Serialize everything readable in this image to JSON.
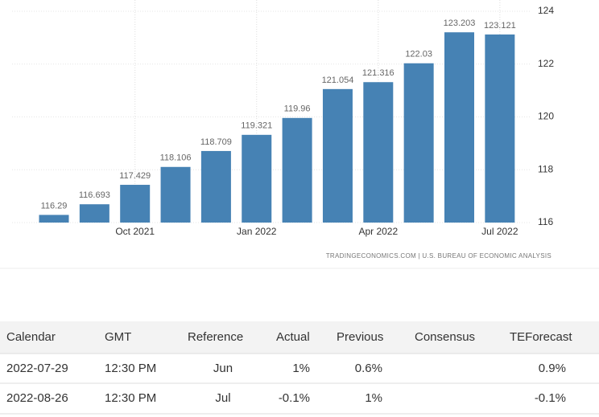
{
  "chart_data": {
    "type": "bar",
    "categories": [
      null,
      null,
      "Oct 2021",
      null,
      null,
      "Jan 2022",
      null,
      null,
      "Apr 2022",
      null,
      null,
      "Jul 2022"
    ],
    "values": [
      116.29,
      116.693,
      117.429,
      118.106,
      118.709,
      119.321,
      119.96,
      121.054,
      121.316,
      122.03,
      123.203,
      123.121
    ],
    "color": "#4682b4",
    "ylim": [
      116,
      124
    ],
    "yticks": [
      116,
      118,
      120,
      122,
      124
    ],
    "grid": true,
    "source": "TRADINGECONOMICS.COM | U.S. BUREAU OF ECONOMIC ANALYSIS"
  },
  "table": {
    "header": [
      "Calendar",
      "GMT",
      "Reference",
      "Actual",
      "Previous",
      "Consensus",
      "TEForecast"
    ],
    "rows": [
      {
        "calendar": "2022-07-29",
        "gmt": "12:30 PM",
        "reference": "Jun",
        "actual": "1%",
        "previous": "0.6%",
        "teforecast": "0.9%"
      },
      {
        "calendar": "2022-08-26",
        "gmt": "12:30 PM",
        "reference": "Jul",
        "actual": "-0.1%",
        "previous": "1%",
        "teforecast": "-0.1%"
      }
    ]
  }
}
